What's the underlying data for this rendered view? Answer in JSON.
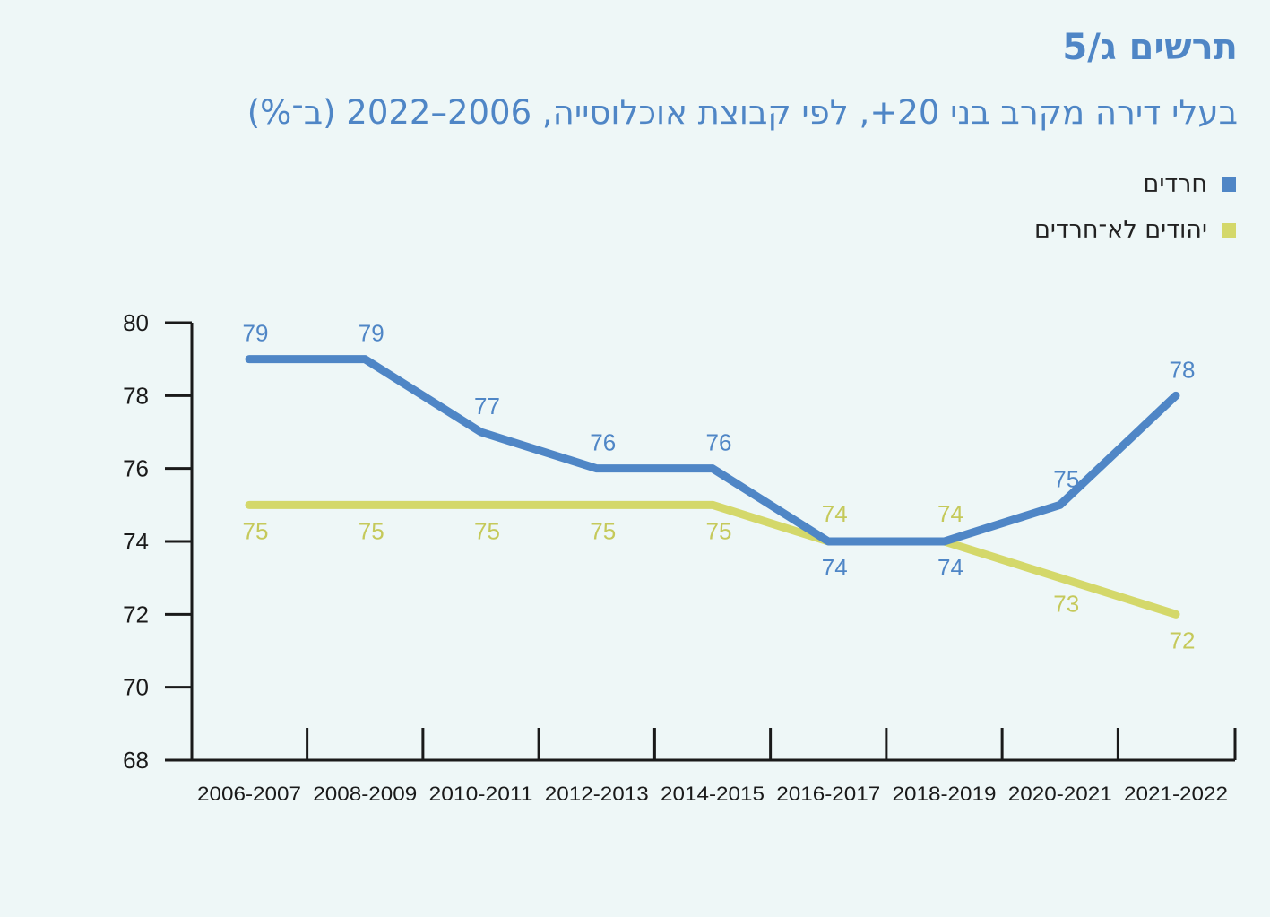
{
  "figure_label": "תרשים ג/5",
  "title": "בעלי דירה מקרב בני 20+, לפי קבוצת אוכלוסייה, 2006–2022 (ב־%)",
  "colors": {
    "haredim": "#4f86c6",
    "non_haredi_jews": "#d4d86a",
    "axis": "#1a1a1a",
    "background": "#eef7f7"
  },
  "legend": [
    {
      "label": "חרדים",
      "color": "#4f86c6"
    },
    {
      "label": "יהודים לא־חרדים",
      "color": "#d4d86a"
    }
  ],
  "chart_data": {
    "type": "line",
    "title": "בעלי דירה מקרב בני 20+, לפי קבוצת אוכלוסייה, 2006–2022 (ב־%)",
    "categories": [
      "2006-2007",
      "2008-2009",
      "2010-2011",
      "2012-2013",
      "2014-2015",
      "2016-2017",
      "2018-2019",
      "2020-2021",
      "2021-2022"
    ],
    "series": [
      {
        "name": "חרדים",
        "values": [
          79,
          79,
          77,
          76,
          76,
          74,
          74,
          75,
          78
        ]
      },
      {
        "name": "יהודים לא־חרדים",
        "values": [
          75,
          75,
          75,
          75,
          75,
          74,
          74,
          73,
          72
        ]
      }
    ],
    "ylim": [
      68,
      80
    ],
    "yticks": [
      80,
      78,
      76,
      74,
      72,
      70,
      68
    ],
    "xlabel": "",
    "ylabel": "",
    "grid": false,
    "legend_position": "top-right"
  }
}
